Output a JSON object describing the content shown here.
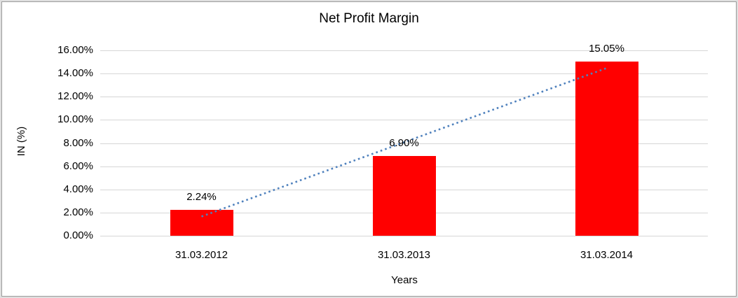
{
  "page": {
    "background": "#FFFFFF",
    "frame_outer_color": "#DFDFDF",
    "frame_border_color": "#9B9B9B"
  },
  "chart_data": {
    "type": "bar",
    "title": "Net Profit Margin",
    "xlabel": "Years",
    "ylabel": "IN (%)",
    "categories": [
      "31.03.2012",
      "31.03.2013",
      "31.03.2014"
    ],
    "values": [
      2.24,
      6.9,
      15.05
    ],
    "data_labels": [
      "2.24%",
      "6.90%",
      "15.05%"
    ],
    "bar_color": "#FF0000",
    "ylim": [
      0,
      16
    ],
    "ytick_labels": [
      "0.00%",
      "2.00%",
      "4.00%",
      "6.00%",
      "8.00%",
      "10.00%",
      "12.00%",
      "14.00%",
      "16.00%"
    ],
    "grid": true,
    "gridline_color": "#D6D6D6",
    "legend": "none",
    "text_color": "#000000",
    "trendline": {
      "type": "linear",
      "style": "dotted",
      "color": "#4F81BD",
      "start_value": 1.66,
      "end_value": 14.47
    }
  }
}
